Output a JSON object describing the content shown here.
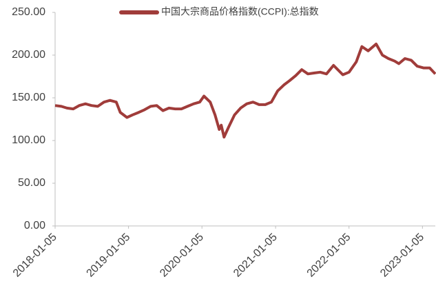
{
  "chart_data": {
    "type": "line",
    "x": [
      "2018-01-05",
      "2018-02-05",
      "2018-03-05",
      "2018-04-05",
      "2018-05-05",
      "2018-06-05",
      "2018-07-05",
      "2018-08-05",
      "2018-09-05",
      "2018-10-05",
      "2018-11-05",
      "2018-11-25",
      "2018-12-28",
      "2019-01-25",
      "2019-02-25",
      "2019-03-25",
      "2019-04-25",
      "2019-05-25",
      "2019-06-25",
      "2019-07-25",
      "2019-08-25",
      "2019-09-25",
      "2019-10-25",
      "2019-11-25",
      "2019-12-25",
      "2020-01-15",
      "2020-02-15",
      "2020-03-10",
      "2020-03-31",
      "2020-04-10",
      "2020-04-24",
      "2020-05-15",
      "2020-06-15",
      "2020-07-15",
      "2020-08-15",
      "2020-09-15",
      "2020-10-15",
      "2020-11-15",
      "2020-12-15",
      "2021-01-15",
      "2021-02-15",
      "2021-03-15",
      "2021-04-15",
      "2021-05-15",
      "2021-06-15",
      "2021-07-15",
      "2021-08-15",
      "2021-09-15",
      "2021-10-20",
      "2021-12-05",
      "2022-01-05",
      "2022-02-10",
      "2022-03-10",
      "2022-04-10",
      "2022-05-20",
      "2022-06-20",
      "2022-07-20",
      "2022-08-20",
      "2022-09-10",
      "2022-10-10",
      "2022-11-10",
      "2022-12-10",
      "2023-01-10",
      "2023-02-10",
      "2023-03-10"
    ],
    "series": [
      {
        "name": "中国大宗商品价格指数(CCPI):总指数",
        "color": "#a03c3a",
        "values": [
          141,
          140,
          138,
          137,
          141,
          143,
          141,
          140,
          145,
          147,
          145,
          133,
          127,
          130,
          133,
          136,
          140,
          141,
          135,
          138,
          137,
          137,
          140,
          143,
          145,
          152,
          145,
          130,
          113,
          118,
          104,
          115,
          130,
          138,
          143,
          145,
          142,
          142,
          145,
          158,
          165,
          170,
          176,
          183,
          178,
          179,
          180,
          178,
          188,
          177,
          180,
          192,
          210,
          205,
          213,
          200,
          196,
          193,
          190,
          196,
          194,
          187,
          185,
          185,
          178
        ]
      }
    ],
    "xlim": [
      "2018-01-05",
      "2023-03-10"
    ],
    "xticks": [
      "2018-01-05",
      "2019-01-05",
      "2020-01-05",
      "2021-01-05",
      "2022-01-05",
      "2023-01-05"
    ],
    "ylim": [
      0,
      250
    ],
    "yticks": [
      {
        "value": 0,
        "label": "0.00"
      },
      {
        "value": 50,
        "label": "50.00"
      },
      {
        "value": 100,
        "label": "100.00"
      },
      {
        "value": 150,
        "label": "150.00"
      },
      {
        "value": 200,
        "label": "200.00"
      },
      {
        "value": 250,
        "label": "250.00"
      }
    ],
    "legend": "top"
  }
}
